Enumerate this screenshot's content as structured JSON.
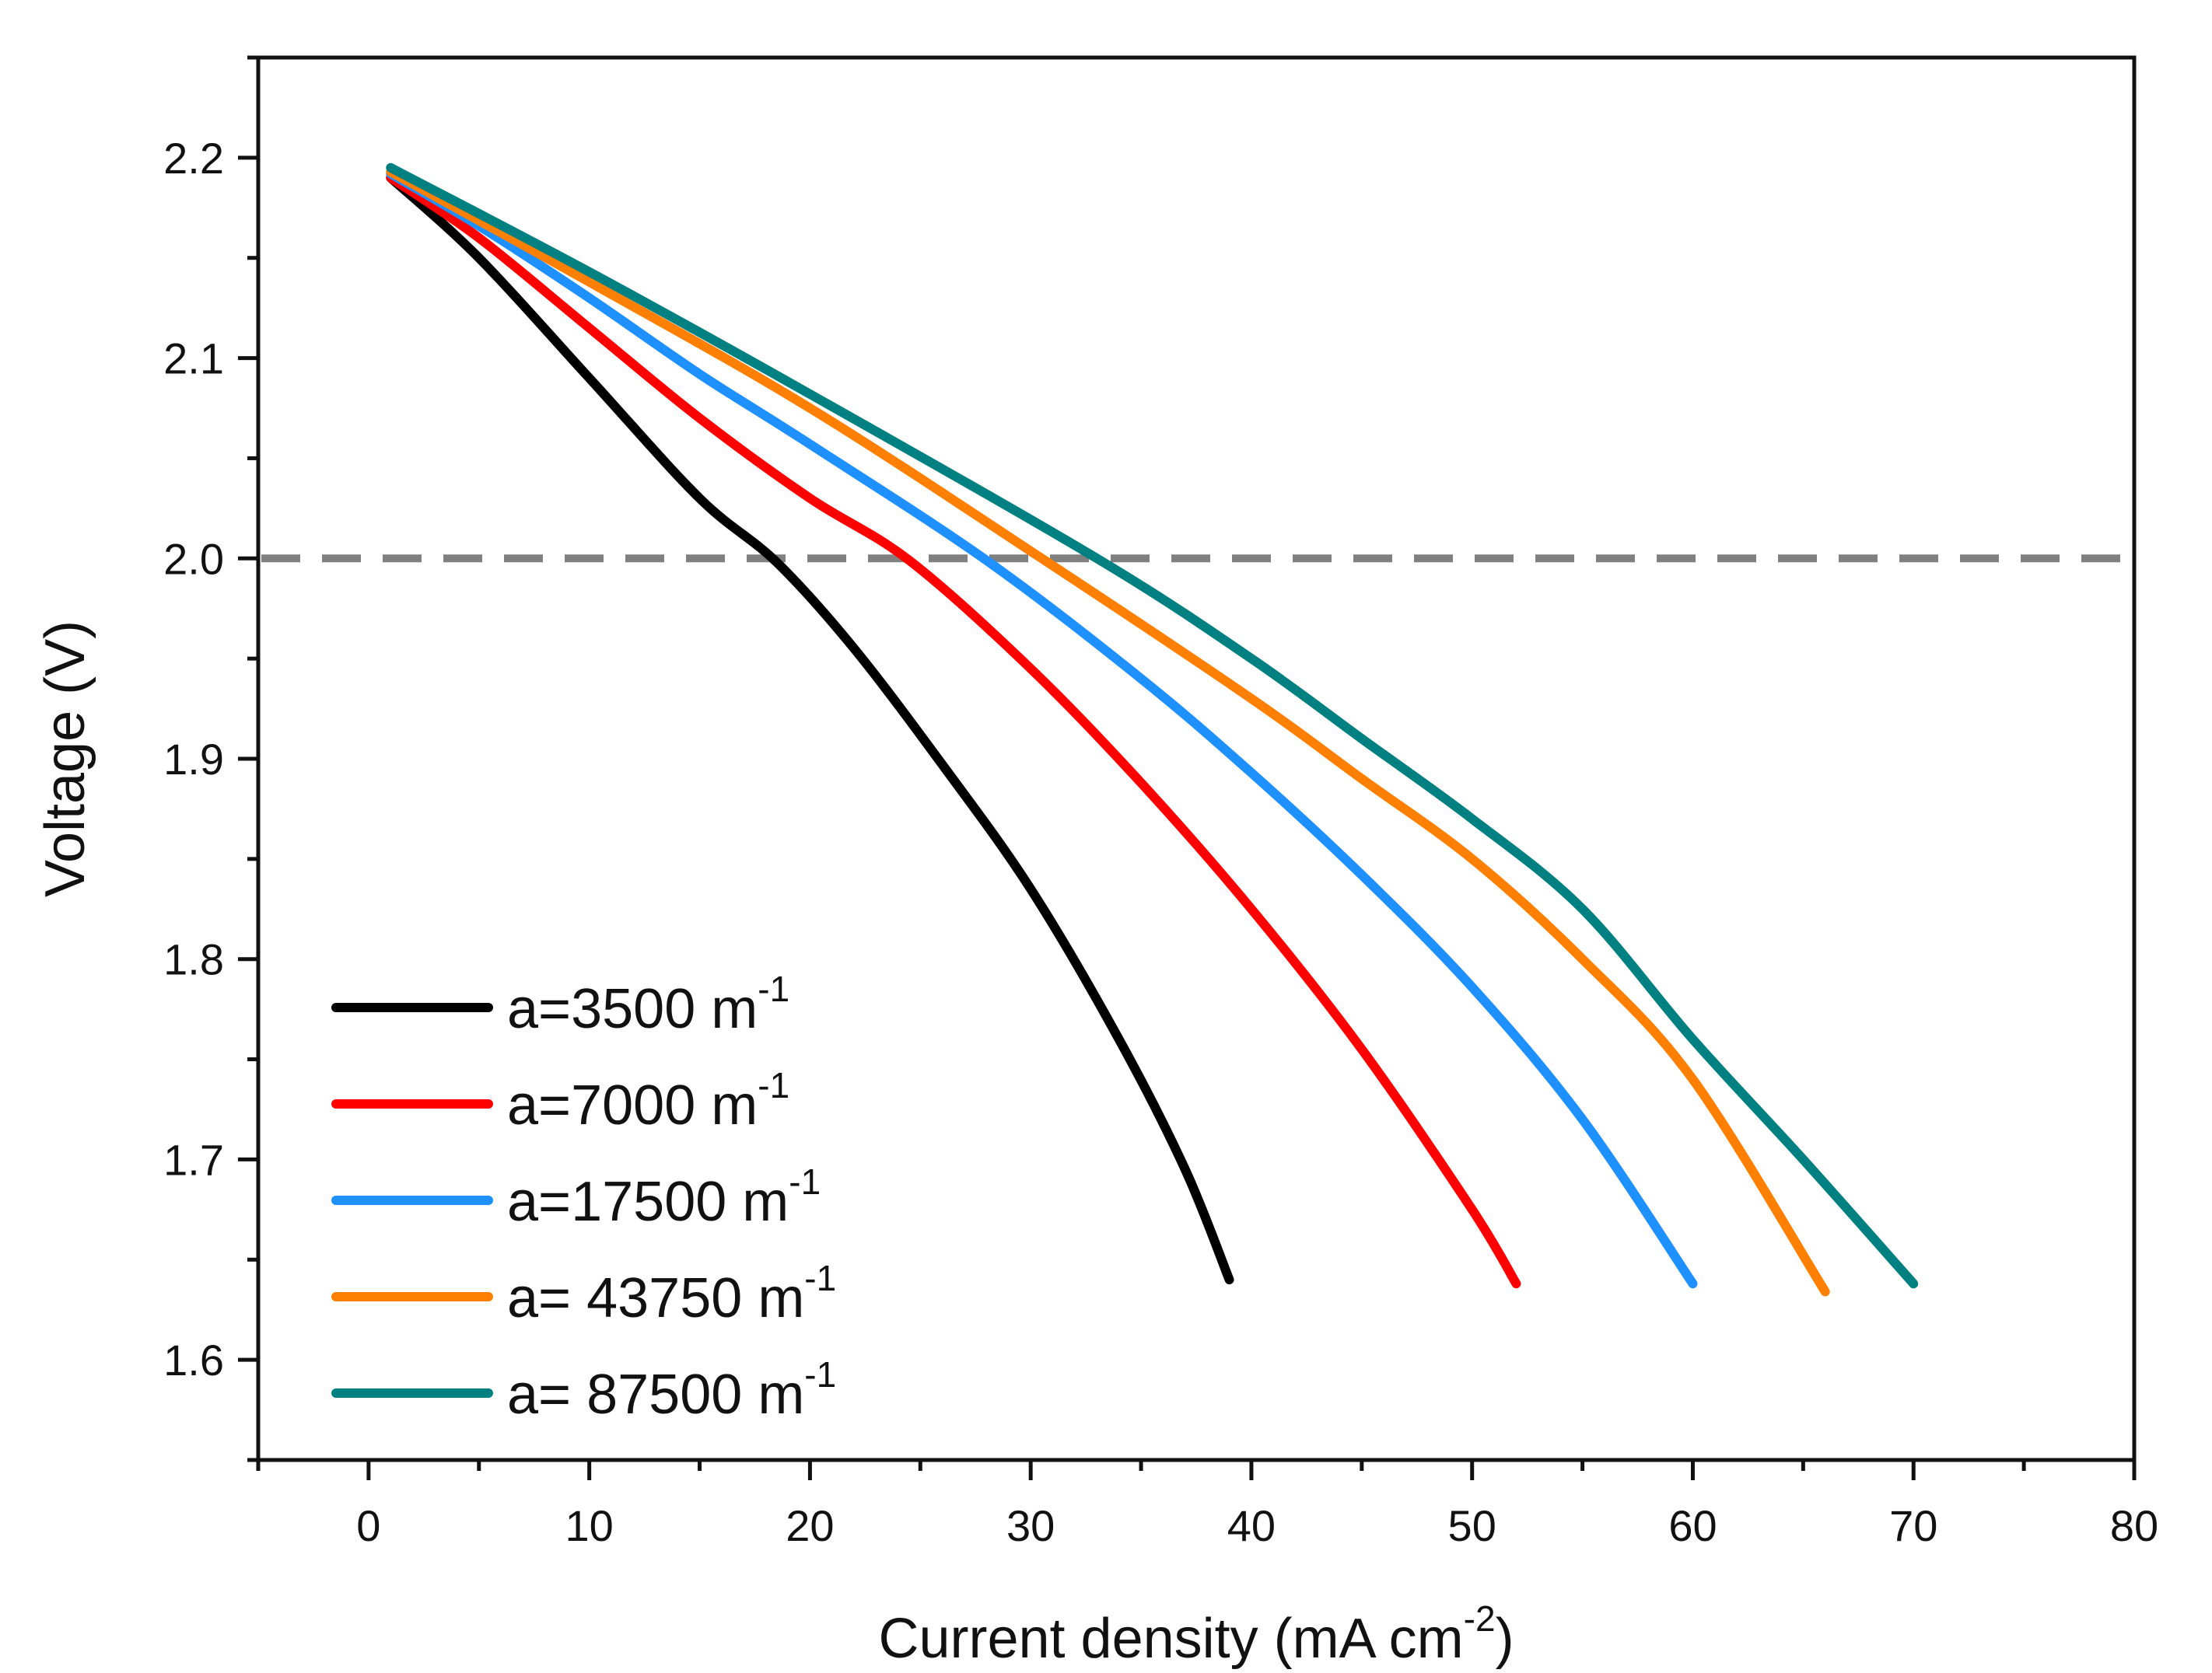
{
  "chart_data": {
    "type": "line",
    "title": "",
    "xlabel": "Current density (mA cm",
    "xlabel_sup": "-2",
    "xlabel_suffix": ")",
    "ylabel": "Voltage (V)",
    "xlim": [
      -5,
      80
    ],
    "ylim": [
      1.55,
      2.25
    ],
    "xticks": [
      0,
      10,
      20,
      30,
      40,
      50,
      60,
      70,
      80
    ],
    "xtick_labels": [
      "0",
      "10",
      "20",
      "30",
      "40",
      "50",
      "60",
      "70",
      "80"
    ],
    "yticks": [
      1.6,
      1.7,
      1.8,
      1.9,
      2.0,
      2.1,
      2.2
    ],
    "ytick_labels": [
      "1.6",
      "1.7",
      "1.8",
      "1.9",
      "2.0",
      "2.1",
      "2.2"
    ],
    "reference_line": {
      "y": 2.0,
      "style": "dashed",
      "color": "#808080"
    },
    "legend_position": "bottom-left",
    "series": [
      {
        "name": "a=3500 m",
        "sup": "-1",
        "color": "#000000",
        "x": [
          1,
          5,
          10,
          15,
          18.5,
          22,
          26,
          30,
          34,
          37,
          39
        ],
        "y": [
          2.19,
          2.15,
          2.09,
          2.03,
          1.998,
          1.955,
          1.897,
          1.835,
          1.76,
          1.695,
          1.64
        ]
      },
      {
        "name": "a=7000 m",
        "sup": "-1",
        "color": "#ff0000",
        "x": [
          1,
          5,
          10,
          15,
          20,
          24.5,
          30,
          35,
          40,
          45,
          50,
          52
        ],
        "y": [
          2.19,
          2.16,
          2.115,
          2.07,
          2.03,
          1.999,
          1.945,
          1.888,
          1.825,
          1.755,
          1.675,
          1.638
        ]
      },
      {
        "name": "a=17500 m",
        "sup": "-1",
        "color": "#1e90ff",
        "x": [
          1,
          5,
          10,
          15,
          20,
          28,
          35,
          40,
          45,
          50,
          55,
          60
        ],
        "y": [
          2.192,
          2.166,
          2.13,
          2.092,
          2.057,
          1.999,
          1.94,
          1.893,
          1.842,
          1.786,
          1.72,
          1.638
        ]
      },
      {
        "name": "a= 43750 m",
        "sup": "-1",
        "color": "#ff7f00",
        "x": [
          1,
          10,
          20,
          30.5,
          40,
          45,
          50,
          55,
          60,
          66
        ],
        "y": [
          2.193,
          2.138,
          2.075,
          2.0,
          1.93,
          1.89,
          1.85,
          1.8,
          1.74,
          1.634
        ]
      },
      {
        "name": "a= 87500 m",
        "sup": "-1",
        "color": "#008080",
        "x": [
          1,
          10,
          20,
          33,
          40,
          45,
          50,
          55,
          60,
          65,
          70
        ],
        "y": [
          2.195,
          2.143,
          2.082,
          2.0,
          1.95,
          1.91,
          1.87,
          1.825,
          1.76,
          1.7,
          1.638
        ]
      }
    ]
  }
}
